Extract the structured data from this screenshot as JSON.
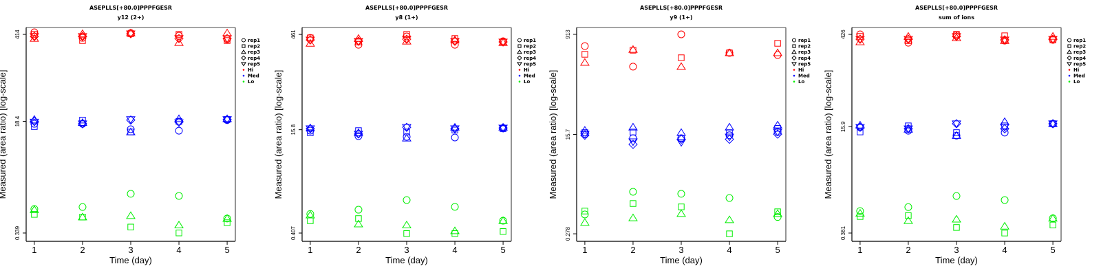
{
  "chart_data": [
    {
      "type": "scatter",
      "title": "ASEPLLS[+80.0]PPPFGESR",
      "subtitle": "y12 (2+)",
      "xlabel": "Time (day)",
      "ylabel": "Measured (area ratio) [log-scale]",
      "yscale": "log",
      "x": [
        1,
        2,
        3,
        4,
        5
      ],
      "xticks": [
        "1",
        "2",
        "3",
        "4",
        "5"
      ],
      "yticks": [
        414,
        18.4,
        0.339
      ],
      "ytick_labels": [
        "414",
        "18.4",
        "0.339"
      ],
      "ylim": [
        0.252,
        530
      ],
      "xlim": [
        0.83,
        5.17
      ],
      "grid": false,
      "legend_position": "right",
      "series": [
        {
          "level": "Hi",
          "rep": "rep1",
          "values": [
            446,
            366,
            435,
            394,
            349
          ]
        },
        {
          "level": "Hi",
          "rep": "rep2",
          "values": [
            414,
            332,
            424,
            414,
            332
          ]
        },
        {
          "level": "Hi",
          "rep": "rep3",
          "values": [
            357,
            424,
            435,
            308,
            435
          ]
        },
        {
          "level": "Hi",
          "rep": "rep4",
          "values": [
            385,
            385,
            424,
            357,
            357
          ]
        },
        {
          "level": "Hi",
          "rep": "rep5",
          "values": [
            385,
            385,
            424,
            357,
            357
          ]
        },
        {
          "level": "Med",
          "rep": "rep1",
          "values": [
            16.9,
            16.9,
            13.9,
            13.2,
            19.3
          ]
        },
        {
          "level": "Med",
          "rep": "rep2",
          "values": [
            15.3,
            19.3,
            12.6,
            18.4,
            19.7
          ]
        },
        {
          "level": "Med",
          "rep": "rep3",
          "values": [
            19.7,
            17.6,
            12.6,
            20.2,
            20.2
          ]
        },
        {
          "level": "Med",
          "rep": "rep4",
          "values": [
            18.4,
            16.9,
            19.3,
            18.0,
            19.7
          ]
        },
        {
          "level": "Med",
          "rep": "rep5",
          "values": [
            18.0,
            16.9,
            19.7,
            17.6,
            19.7
          ]
        },
        {
          "level": "Lo",
          "rep": "rep1",
          "values": [
            0.8,
            0.86,
            1.38,
            1.28,
            0.57
          ]
        },
        {
          "level": "Lo",
          "rep": "rep2",
          "values": [
            0.66,
            0.6,
            0.42,
            0.34,
            0.49
          ]
        },
        {
          "level": "Lo",
          "rep": "rep3",
          "values": [
            0.78,
            0.6,
            0.63,
            0.45,
            0.57
          ]
        }
      ]
    },
    {
      "type": "scatter",
      "title": "ASEPLLS[+80.0]PPPFGESR",
      "subtitle": "y8 (1+)",
      "xlabel": "Time (day)",
      "ylabel": "Measured (area ratio) [log-scale]",
      "yscale": "log",
      "x": [
        1,
        2,
        3,
        4,
        5
      ],
      "xticks": [
        "1",
        "2",
        "3",
        "4",
        "5"
      ],
      "yticks": [
        461,
        15.8,
        0.407
      ],
      "ytick_labels": [
        "461",
        "15.8",
        "0.407"
      ],
      "ylim": [
        0.304,
        589
      ],
      "xlim": [
        0.83,
        5.17
      ],
      "grid": false,
      "legend_position": "right",
      "series": [
        {
          "level": "Hi",
          "rep": "rep1",
          "values": [
            408,
            320,
            429,
            320,
            362
          ]
        },
        {
          "level": "Hi",
          "rep": "rep2",
          "values": [
            408,
            353,
            461,
            399,
            353
          ]
        },
        {
          "level": "Hi",
          "rep": "rep3",
          "values": [
            336,
            399,
            362,
            379,
            345
          ]
        },
        {
          "level": "Hi",
          "rep": "rep4",
          "values": [
            379,
            362,
            389,
            362,
            353
          ]
        },
        {
          "level": "Hi",
          "rep": "rep5",
          "values": [
            379,
            362,
            389,
            362,
            353
          ]
        },
        {
          "level": "Med",
          "rep": "rep1",
          "values": [
            15.3,
            12.6,
            12.3,
            12.0,
            16.8
          ]
        },
        {
          "level": "Med",
          "rep": "rep2",
          "values": [
            14.2,
            15.3,
            14.6,
            15.6,
            16.4
          ]
        },
        {
          "level": "Med",
          "rep": "rep3",
          "values": [
            16.8,
            14.2,
            11.7,
            17.2,
            17.2
          ]
        },
        {
          "level": "Med",
          "rep": "rep4",
          "values": [
            16.4,
            13.6,
            17.2,
            16.4,
            16.8
          ]
        },
        {
          "level": "Med",
          "rep": "rep5",
          "values": [
            16.4,
            13.6,
            17.2,
            16.4,
            16.8
          ]
        },
        {
          "level": "Lo",
          "rep": "rep1",
          "values": [
            0.8,
            0.93,
            1.31,
            1.03,
            0.63
          ]
        },
        {
          "level": "Lo",
          "rep": "rep2",
          "values": [
            0.63,
            0.68,
            0.4,
            0.4,
            0.43
          ]
        },
        {
          "level": "Lo",
          "rep": "rep3",
          "values": [
            0.77,
            0.56,
            0.54,
            0.44,
            0.63
          ]
        }
      ]
    },
    {
      "type": "scatter",
      "title": "ASEPLLS[+80.0]PPPFGESR",
      "subtitle": "y9 (1+)",
      "xlabel": "Time (day)",
      "ylabel": "Measured (area ratio) [log-scale]",
      "yscale": "log",
      "x": [
        1,
        2,
        3,
        4,
        5
      ],
      "xticks": [
        "1",
        "2",
        "3",
        "4",
        "5"
      ],
      "yticks": [
        913,
        15.7,
        0.278
      ],
      "ytick_labels": [
        "913",
        "15.7",
        "0.278"
      ],
      "ylim": [
        0.205,
        1205
      ],
      "xlim": [
        0.83,
        5.17
      ],
      "grid": false,
      "legend_position": "right",
      "series": [
        {
          "level": "Hi",
          "rep": "rep1",
          "values": [
            567,
            246,
            913,
            430,
            394
          ]
        },
        {
          "level": "Hi",
          "rep": "rep2",
          "values": [
            406,
            479,
            353,
            430,
            634
          ]
        },
        {
          "level": "Hi",
          "rep": "rep3",
          "values": [
            291,
            493,
            246,
            430,
            430
          ]
        },
        {
          "level": "Med",
          "rep": "rep1",
          "values": [
            15.9,
            13.5,
            13.5,
            15.2,
            17.3
          ]
        },
        {
          "level": "Med",
          "rep": "rep2",
          "values": [
            16.9,
            17.3,
            13.5,
            16.9,
            20.1
          ]
        },
        {
          "level": "Med",
          "rep": "rep3",
          "values": [
            18.5,
            21.1,
            16.9,
            21.1,
            22.9
          ]
        },
        {
          "level": "Med",
          "rep": "rep4",
          "values": [
            15.2,
            10.5,
            12.9,
            12.9,
            15.9
          ]
        },
        {
          "level": "Med",
          "rep": "rep5",
          "values": [
            15.9,
            11.7,
            11.4,
            14.2,
            17.3
          ]
        },
        {
          "level": "Lo",
          "rep": "rep1",
          "values": [
            0.61,
            1.53,
            1.41,
            1.19,
            0.55
          ]
        },
        {
          "level": "Lo",
          "rep": "rep2",
          "values": [
            0.7,
            0.95,
            0.83,
            0.278,
            0.68
          ]
        },
        {
          "level": "Lo",
          "rep": "rep3",
          "values": [
            0.44,
            0.53,
            0.63,
            0.49,
            0.63
          ]
        }
      ]
    },
    {
      "type": "scatter",
      "title": "ASEPLLS[+80.0]PPPFGESR",
      "subtitle": "sum of ions",
      "xlabel": "Time (day)",
      "ylabel": "Measured (area ratio) [log-scale]",
      "yscale": "log",
      "x": [
        1,
        2,
        3,
        4,
        5
      ],
      "xticks": [
        "1",
        "2",
        "3",
        "4",
        "5"
      ],
      "yticks": [
        426,
        15.9,
        0.361
      ],
      "ytick_labels": [
        "426",
        "15.9",
        "0.361"
      ],
      "ylim": [
        0.269,
        544
      ],
      "xlim": [
        0.83,
        5.17
      ],
      "grid": false,
      "legend_position": "right",
      "series": [
        {
          "level": "Hi",
          "rep": "rep1",
          "values": [
            426,
            317,
            415,
            341,
            350
          ]
        },
        {
          "level": "Hi",
          "rep": "rep2",
          "values": [
            396,
            341,
            426,
            405,
            350
          ]
        },
        {
          "level": "Hi",
          "rep": "rep3",
          "values": [
            325,
            396,
            377,
            341,
            396
          ]
        },
        {
          "level": "Hi",
          "rep": "rep4",
          "values": [
            359,
            359,
            396,
            350,
            359
          ]
        },
        {
          "level": "Hi",
          "rep": "rep5",
          "values": [
            359,
            359,
            396,
            350,
            359
          ]
        },
        {
          "level": "Med",
          "rep": "rep1",
          "values": [
            15.6,
            13.8,
            11.6,
            12.9,
            17.7
          ]
        },
        {
          "level": "Med",
          "rep": "rep2",
          "values": [
            13.2,
            16.4,
            12.9,
            16.4,
            17.7
          ]
        },
        {
          "level": "Med",
          "rep": "rep3",
          "values": [
            16.8,
            14.5,
            11.6,
            19.0,
            17.7
          ]
        },
        {
          "level": "Med",
          "rep": "rep4",
          "values": [
            15.6,
            14.8,
            17.7,
            14.8,
            17.7
          ]
        },
        {
          "level": "Med",
          "rep": "rep5",
          "values": [
            15.6,
            14.8,
            17.7,
            15.6,
            17.7
          ]
        },
        {
          "level": "Lo",
          "rep": "rep1",
          "values": [
            0.79,
            0.91,
            1.35,
            1.17,
            0.61
          ]
        },
        {
          "level": "Lo",
          "rep": "rep2",
          "values": [
            0.65,
            0.67,
            0.44,
            0.361,
            0.48
          ]
        },
        {
          "level": "Lo",
          "rep": "rep3",
          "values": [
            0.73,
            0.56,
            0.59,
            0.46,
            0.61
          ]
        }
      ]
    }
  ],
  "legend": {
    "reps": [
      {
        "label": "rep1",
        "shape": "circle"
      },
      {
        "label": "rep2",
        "shape": "square"
      },
      {
        "label": "rep3",
        "shape": "triangle-up"
      },
      {
        "label": "rep4",
        "shape": "diamond"
      },
      {
        "label": "rep5",
        "shape": "triangle-down"
      }
    ],
    "levels": [
      {
        "label": "Hi",
        "color": "#ff0000"
      },
      {
        "label": "Med",
        "color": "#0000ff"
      },
      {
        "label": "Lo",
        "color": "#00ee00"
      }
    ]
  }
}
